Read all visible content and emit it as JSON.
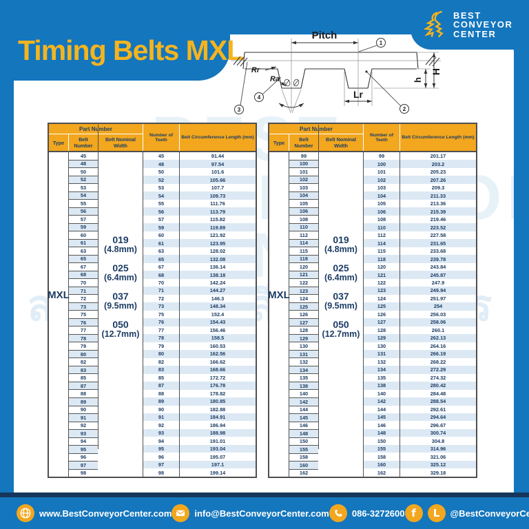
{
  "title": "Timing Belts MXL",
  "logo": {
    "line1": "BEST",
    "line2": "CONVEYOR",
    "line3": "CENTER"
  },
  "diagram": {
    "pitch": "Pitch",
    "rr": "Rr",
    "ra": "Ra",
    "lr": "Lr",
    "big_h": "H",
    "small_h": "h",
    "c1": "1",
    "c2": "2",
    "c3": "3",
    "c4": "4",
    "theta1": "θ",
    "theta2": "θ"
  },
  "table_headers": {
    "part_number": "Part Number",
    "type": "Type",
    "belt_number": "Belt Number",
    "belt_nominal_width": "Belt Nominal Width",
    "teeth": "Number of Teeth",
    "circumference": "Belt Circumference Length (mm)"
  },
  "tables": [
    {
      "type_label": "MXL",
      "widths": [
        [
          "019",
          "(4.8mm)"
        ],
        [
          "025",
          "(6.4mm)"
        ],
        [
          "037",
          "(9.5mm)"
        ],
        [
          "050",
          "(12.7mm)"
        ]
      ],
      "rows": [
        [
          "45",
          "45",
          "91.44"
        ],
        [
          "48",
          "48",
          "97.54"
        ],
        [
          "50",
          "50",
          "101.6"
        ],
        [
          "52",
          "52",
          "105.66"
        ],
        [
          "53",
          "53",
          "107.7"
        ],
        [
          "54",
          "54",
          "109.73"
        ],
        [
          "55",
          "55",
          "111.76"
        ],
        [
          "56",
          "56",
          "113.79"
        ],
        [
          "57",
          "57",
          "115.82"
        ],
        [
          "59",
          "59",
          "119.89"
        ],
        [
          "60",
          "60",
          "121.92"
        ],
        [
          "61",
          "61",
          "123.95"
        ],
        [
          "63",
          "63",
          "128.02"
        ],
        [
          "65",
          "65",
          "132.08"
        ],
        [
          "67",
          "67",
          "136.14"
        ],
        [
          "68",
          "68",
          "138.18"
        ],
        [
          "70",
          "70",
          "142.24"
        ],
        [
          "71",
          "71",
          "144.27"
        ],
        [
          "72",
          "72",
          "146.3"
        ],
        [
          "73",
          "73",
          "148.34"
        ],
        [
          "75",
          "75",
          "152.4"
        ],
        [
          "76",
          "76",
          "154.43"
        ],
        [
          "77",
          "77",
          "156.46"
        ],
        [
          "78",
          "78",
          "158.5"
        ],
        [
          "79",
          "79",
          "160.53"
        ],
        [
          "80",
          "80",
          "162.56"
        ],
        [
          "82",
          "82",
          "166.62"
        ],
        [
          "83",
          "83",
          "168.66"
        ],
        [
          "85",
          "85",
          "172.72"
        ],
        [
          "87",
          "87",
          "176.78"
        ],
        [
          "88",
          "88",
          "178.82"
        ],
        [
          "89",
          "89",
          "180.85"
        ],
        [
          "90",
          "90",
          "182.88"
        ],
        [
          "91",
          "91",
          "184.91"
        ],
        [
          "92",
          "92",
          "186.94"
        ],
        [
          "93",
          "93",
          "188.98"
        ],
        [
          "94",
          "94",
          "191.01"
        ],
        [
          "95",
          "95",
          "193.04"
        ],
        [
          "96",
          "96",
          "195.07"
        ],
        [
          "97",
          "97",
          "197.1"
        ],
        [
          "98",
          "98",
          "199.14"
        ]
      ]
    },
    {
      "type_label": "MXL",
      "widths": [
        [
          "019",
          "(4.8mm)"
        ],
        [
          "025",
          "(6.4mm)"
        ],
        [
          "037",
          "(9.5mm)"
        ],
        [
          "050",
          "(12.7mm)"
        ]
      ],
      "rows": [
        [
          "99",
          "99",
          "201.17"
        ],
        [
          "100",
          "100",
          "203.2"
        ],
        [
          "101",
          "101",
          "205.23"
        ],
        [
          "102",
          "102",
          "207.26"
        ],
        [
          "103",
          "103",
          "209.3"
        ],
        [
          "104",
          "104",
          "211.33"
        ],
        [
          "105",
          "105",
          "213.36"
        ],
        [
          "106",
          "106",
          "215.39"
        ],
        [
          "108",
          "108",
          "219.46"
        ],
        [
          "110",
          "110",
          "223.52"
        ],
        [
          "112",
          "112",
          "227.58"
        ],
        [
          "114",
          "114",
          "231.65"
        ],
        [
          "115",
          "115",
          "233.68"
        ],
        [
          "118",
          "118",
          "239.78"
        ],
        [
          "120",
          "120",
          "243.84"
        ],
        [
          "121",
          "121",
          "245.87"
        ],
        [
          "122",
          "122",
          "247.9"
        ],
        [
          "123",
          "123",
          "249.94"
        ],
        [
          "124",
          "124",
          "251.97"
        ],
        [
          "125",
          "125",
          "254"
        ],
        [
          "126",
          "126",
          "256.03"
        ],
        [
          "127",
          "127",
          "258.06"
        ],
        [
          "128",
          "128",
          "260.1"
        ],
        [
          "129",
          "129",
          "262.13"
        ],
        [
          "130",
          "130",
          "264.16"
        ],
        [
          "131",
          "131",
          "266.19"
        ],
        [
          "132",
          "132",
          "268.22"
        ],
        [
          "134",
          "134",
          "272.29"
        ],
        [
          "135",
          "135",
          "274.32"
        ],
        [
          "138",
          "138",
          "280.42"
        ],
        [
          "140",
          "140",
          "284.48"
        ],
        [
          "142",
          "142",
          "288.54"
        ],
        [
          "144",
          "144",
          "292.61"
        ],
        [
          "145",
          "145",
          "294.64"
        ],
        [
          "146",
          "146",
          "296.67"
        ],
        [
          "148",
          "148",
          "300.74"
        ],
        [
          "150",
          "150",
          "304.8"
        ],
        [
          "155",
          "155",
          "314.96"
        ],
        [
          "158",
          "158",
          "321.06"
        ],
        [
          "160",
          "160",
          "325.12"
        ],
        [
          "162",
          "162",
          "329.18"
        ]
      ]
    }
  ],
  "footer": {
    "website": "www.BestConveyorCenter.com",
    "email": "info@BestConveyorCenter.com",
    "phone": "086-3272600",
    "social": "@BestConveyorCenter"
  },
  "watermark": {
    "line1": "BEST",
    "line2": "CONVEYOR",
    "line3": "CENTER",
    "thai": "สายพานลำเลียงครบวงจร"
  },
  "colors": {
    "blue": "#1476BD",
    "gold": "#F2A71E",
    "yellow": "#F5B41E",
    "navy": "#1C3C64",
    "stripe": "#DCE9F4",
    "dark_line": "#16365C"
  }
}
